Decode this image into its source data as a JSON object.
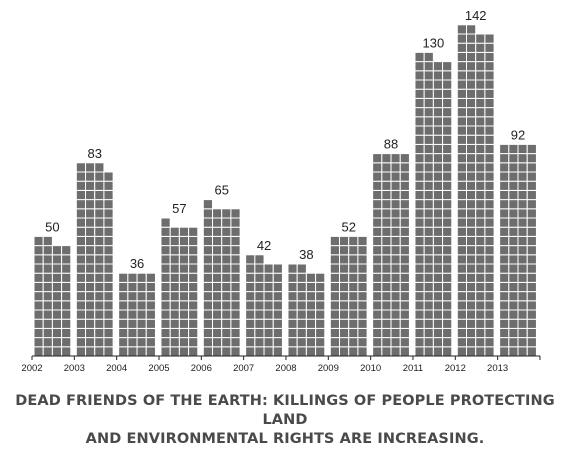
{
  "caption": {
    "line1": "DEAD FRIENDS OF THE EARTH: KILLINGS OF PEOPLE PROTECTING LAND",
    "line2": "AND ENVIRONMENTAL RIGHTS ARE INCREASING."
  },
  "chart_data": {
    "type": "bar",
    "categories": [
      "2002",
      "2003",
      "2004",
      "2005",
      "2006",
      "2007",
      "2008",
      "2009",
      "2010",
      "2011",
      "2012",
      "2013"
    ],
    "values": [
      50,
      83,
      36,
      57,
      65,
      42,
      38,
      52,
      88,
      130,
      142,
      92
    ],
    "value_labels": [
      "50",
      "83",
      "36",
      "57",
      "65",
      "42",
      "38",
      "52",
      "88",
      "130",
      "142",
      "92"
    ],
    "xlabel": "",
    "ylabel": "",
    "title": "",
    "ylim": [
      0,
      150
    ],
    "grid": false,
    "mark_style": "unit squares (one square per killing)",
    "bar_color": "#6d6d6d",
    "cell_border_color": "#ffffff",
    "axis_color": "#222222",
    "label_color": "#222222"
  }
}
